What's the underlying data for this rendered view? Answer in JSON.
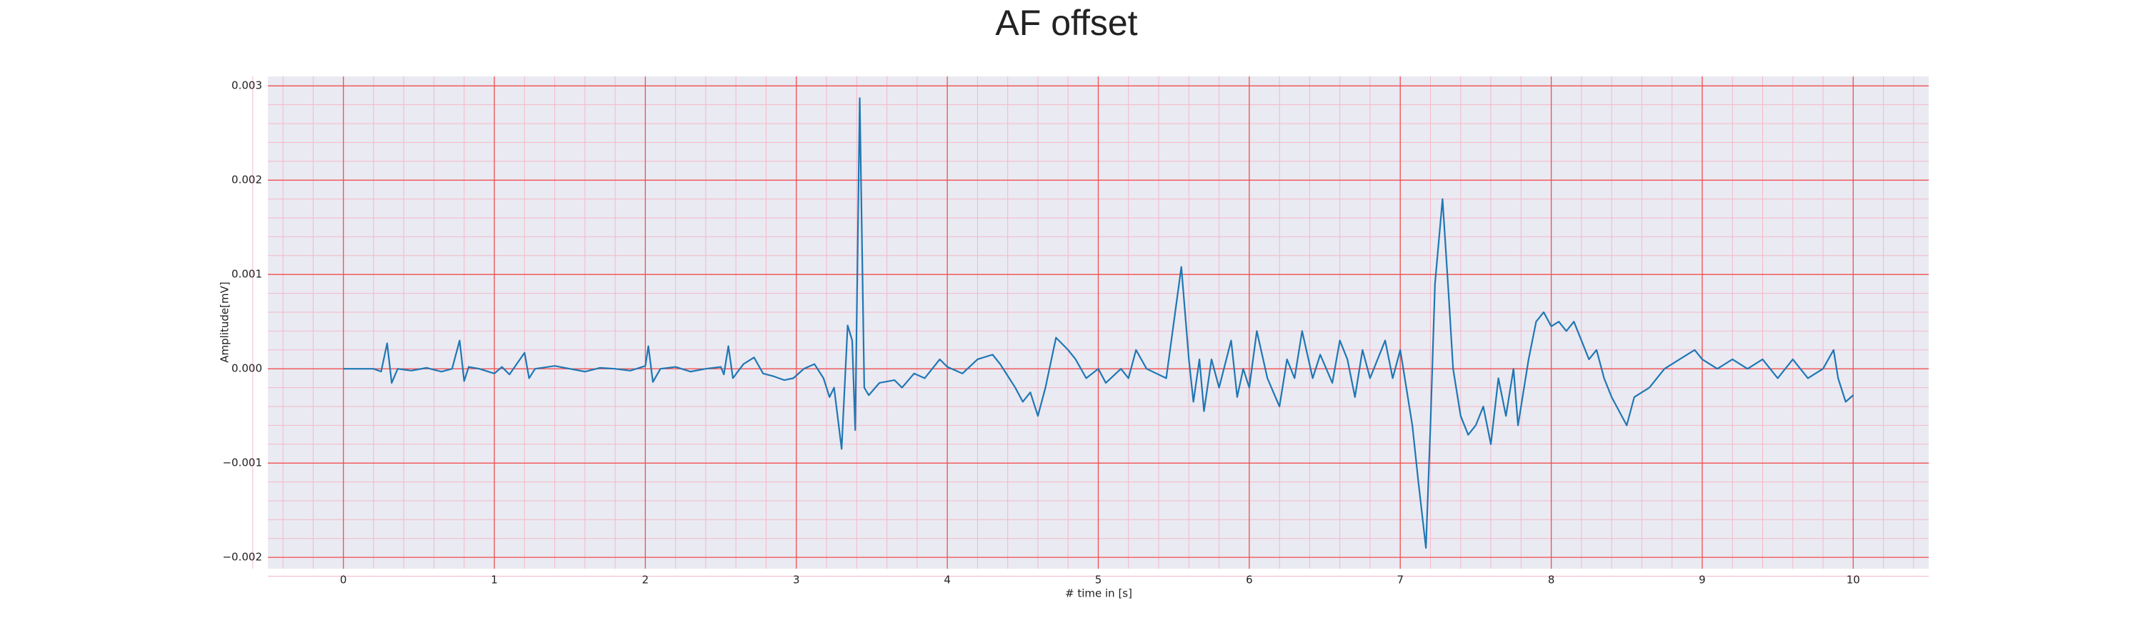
{
  "chart_data": {
    "type": "line",
    "title": "AF offset",
    "xlabel": "# time in [s]",
    "ylabel": "Amplitude[mV]",
    "x": [
      0,
      0.2,
      0.25,
      0.29,
      0.32,
      0.36,
      0.45,
      0.55,
      0.65,
      0.72,
      0.77,
      0.8,
      0.83,
      0.9,
      1.0,
      1.05,
      1.1,
      1.2,
      1.23,
      1.27,
      1.4,
      1.5,
      1.6,
      1.7,
      1.8,
      1.9,
      2.0,
      2.02,
      2.05,
      2.1,
      2.2,
      2.3,
      2.4,
      2.5,
      2.52,
      2.55,
      2.58,
      2.65,
      2.72,
      2.78,
      2.85,
      2.92,
      2.98,
      3.05,
      3.12,
      3.18,
      3.22,
      3.25,
      3.3,
      3.34,
      3.37,
      3.39,
      3.42,
      3.45,
      3.48,
      3.55,
      3.65,
      3.7,
      3.78,
      3.85,
      3.95,
      4.0,
      4.1,
      4.2,
      4.3,
      4.35,
      4.45,
      4.5,
      4.55,
      4.6,
      4.65,
      4.72,
      4.8,
      4.85,
      4.92,
      5.0,
      5.05,
      5.15,
      5.2,
      5.25,
      5.32,
      5.45,
      5.55,
      5.6,
      5.63,
      5.67,
      5.7,
      5.75,
      5.8,
      5.88,
      5.92,
      5.96,
      6.0,
      6.05,
      6.12,
      6.2,
      6.25,
      6.3,
      6.35,
      6.42,
      6.47,
      6.55,
      6.6,
      6.65,
      6.7,
      6.75,
      6.8,
      6.9,
      6.95,
      7.0,
      7.05,
      7.08,
      7.12,
      7.17,
      7.2,
      7.23,
      7.28,
      7.32,
      7.35,
      7.4,
      7.45,
      7.5,
      7.55,
      7.6,
      7.65,
      7.7,
      7.75,
      7.78,
      7.85,
      7.9,
      7.95,
      8.0,
      8.05,
      8.1,
      8.15,
      8.2,
      8.25,
      8.3,
      8.35,
      8.4,
      8.5,
      8.55,
      8.65,
      8.75,
      8.85,
      8.95,
      9.0,
      9.1,
      9.2,
      9.3,
      9.4,
      9.5,
      9.6,
      9.7,
      9.8,
      9.87,
      9.9,
      9.95,
      10.0
    ],
    "series": [
      {
        "color": "#1f77b4",
        "values": [
          0,
          0,
          -3e-05,
          0.00027,
          -0.00015,
          0,
          -2e-05,
          1e-05,
          -3e-05,
          0,
          0.0003,
          -0.00013,
          2e-05,
          0,
          -5e-05,
          2e-05,
          -6e-05,
          0.00017,
          -0.0001,
          0,
          3e-05,
          0,
          -3e-05,
          1e-05,
          0,
          -2e-05,
          3e-05,
          0.00024,
          -0.00014,
          0,
          2e-05,
          -3e-05,
          0,
          2e-05,
          -6e-05,
          0.00024,
          -0.0001,
          5e-05,
          0.00012,
          -5e-05,
          -8e-05,
          -0.00012,
          -0.0001,
          0,
          5e-05,
          -0.0001,
          -0.0003,
          -0.0002,
          -0.00085,
          0.00046,
          0.0003,
          -0.00065,
          0.00287,
          -0.0002,
          -0.00028,
          -0.00015,
          -0.00012,
          -0.0002,
          -5e-05,
          -0.0001,
          0.0001,
          2e-05,
          -5e-05,
          0.0001,
          0.00015,
          5e-05,
          -0.0002,
          -0.00035,
          -0.00025,
          -0.0005,
          -0.0002,
          0.00033,
          0.0002,
          0.0001,
          -0.0001,
          0,
          -0.00015,
          0,
          -0.0001,
          0.0002,
          0,
          -0.0001,
          0.00108,
          0.0001,
          -0.00035,
          0.0001,
          -0.00045,
          0.0001,
          -0.0002,
          0.0003,
          -0.0003,
          0,
          -0.0002,
          0.0004,
          -0.0001,
          -0.0004,
          0.0001,
          -0.0001,
          0.0004,
          -0.0001,
          0.00015,
          -0.00015,
          0.0003,
          0.0001,
          -0.0003,
          0.0002,
          -0.0001,
          0.0003,
          -0.0001,
          0.0002,
          -0.0003,
          -0.0006,
          -0.0012,
          -0.0019,
          -0.0006,
          0.0009,
          0.0018,
          0.0008,
          0,
          -0.0005,
          -0.0007,
          -0.0006,
          -0.0004,
          -0.0008,
          -0.0001,
          -0.0005,
          0,
          -0.0006,
          0.0001,
          0.0005,
          0.0006,
          0.00045,
          0.0005,
          0.0004,
          0.0005,
          0.0003,
          0.0001,
          0.0002,
          -0.0001,
          -0.0003,
          -0.0006,
          -0.0003,
          -0.0002,
          0,
          0.0001,
          0.0002,
          0.0001,
          0,
          0.0001,
          0,
          0.0001,
          -0.0001,
          0.0001,
          -0.0001,
          0,
          0.0002,
          -0.0001,
          -0.00035,
          -0.00028
        ]
      }
    ],
    "xlim": [
      -0.5,
      10.5
    ],
    "xticks": [
      0,
      1,
      2,
      3,
      4,
      5,
      6,
      7,
      8,
      9,
      10
    ],
    "ylim": [
      -0.00212,
      0.0031
    ],
    "yticks": [
      {
        "value": -0.002,
        "label": "−0.002"
      },
      {
        "value": -0.001,
        "label": "−0.001"
      },
      {
        "value": 0,
        "label": "0.000"
      },
      {
        "value": 0.001,
        "label": "0.001"
      },
      {
        "value": 0.002,
        "label": "0.002"
      },
      {
        "value": 0.003,
        "label": "0.003"
      }
    ],
    "grid": true,
    "minor_grid": true
  }
}
